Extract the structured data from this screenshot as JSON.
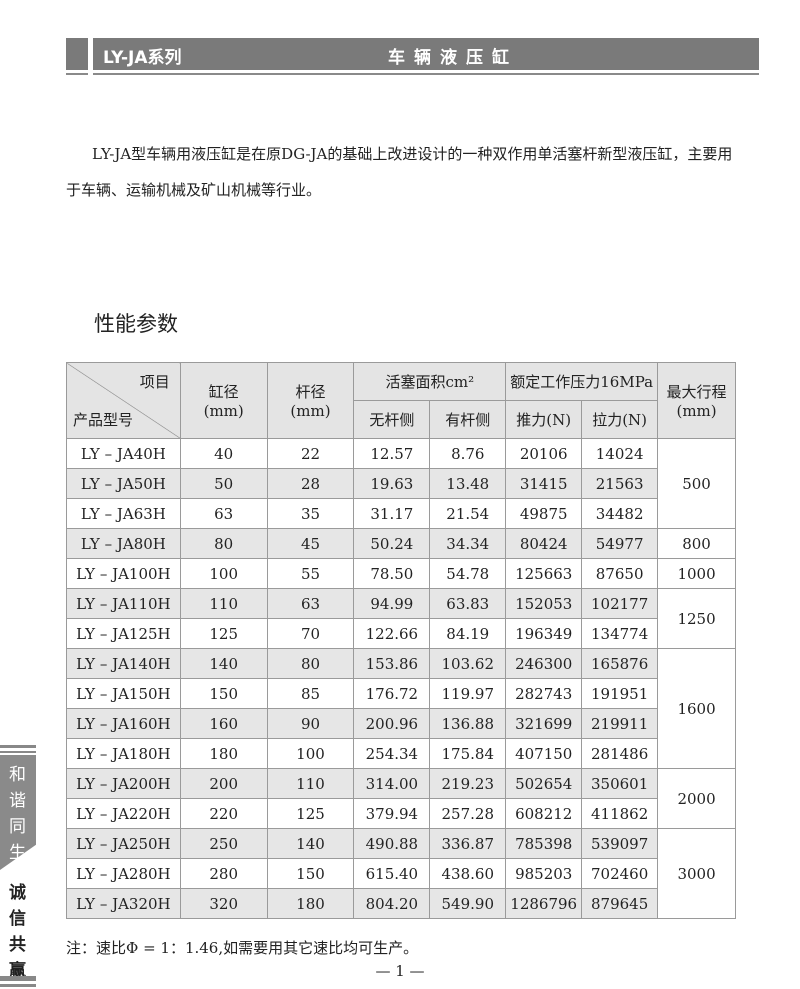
{
  "header": {
    "series": "LY-JA系列",
    "title": "车辆液压缸"
  },
  "intro": "LY-JA型车辆用液压缸是在原DG-JA的基础上改进设计的一种双作用单活塞杆新型液压缸，主要用于车辆、运输机械及矿山机械等行业。",
  "section_title": "性能参数",
  "table": {
    "head": {
      "item": "项目",
      "model": "产品型号",
      "bore": "缸径\n(mm)",
      "rod": "杆径\n(mm)",
      "area": "活塞面积cm²",
      "area_rodless": "无杆侧",
      "area_rod": "有杆侧",
      "pressure": "额定工作压力16MPa",
      "push": "推力(N)",
      "pull": "拉力(N)",
      "stroke": "最大行程\n(mm)"
    },
    "rows": [
      [
        "LY – JA40H",
        "40",
        "22",
        "12.57",
        "8.76",
        "20106",
        "14024"
      ],
      [
        "LY – JA50H",
        "50",
        "28",
        "19.63",
        "13.48",
        "31415",
        "21563"
      ],
      [
        "LY – JA63H",
        "63",
        "35",
        "31.17",
        "21.54",
        "49875",
        "34482"
      ],
      [
        "LY – JA80H",
        "80",
        "45",
        "50.24",
        "34.34",
        "80424",
        "54977"
      ],
      [
        "LY – JA100H",
        "100",
        "55",
        "78.50",
        "54.78",
        "125663",
        "87650"
      ],
      [
        "LY – JA110H",
        "110",
        "63",
        "94.99",
        "63.83",
        "152053",
        "102177"
      ],
      [
        "LY – JA125H",
        "125",
        "70",
        "122.66",
        "84.19",
        "196349",
        "134774"
      ],
      [
        "LY – JA140H",
        "140",
        "80",
        "153.86",
        "103.62",
        "246300",
        "165876"
      ],
      [
        "LY – JA150H",
        "150",
        "85",
        "176.72",
        "119.97",
        "282743",
        "191951"
      ],
      [
        "LY – JA160H",
        "160",
        "90",
        "200.96",
        "136.88",
        "321699",
        "219911"
      ],
      [
        "LY – JA180H",
        "180",
        "100",
        "254.34",
        "175.84",
        "407150",
        "281486"
      ],
      [
        "LY – JA200H",
        "200",
        "110",
        "314.00",
        "219.23",
        "502654",
        "350601"
      ],
      [
        "LY – JA220H",
        "220",
        "125",
        "379.94",
        "257.28",
        "608212",
        "411862"
      ],
      [
        "LY – JA250H",
        "250",
        "140",
        "490.88",
        "336.87",
        "785398",
        "539097"
      ],
      [
        "LY – JA280H",
        "280",
        "150",
        "615.40",
        "438.60",
        "985203",
        "702460"
      ],
      [
        "LY – JA320H",
        "320",
        "180",
        "804.20",
        "549.90",
        "1286796",
        "879645"
      ]
    ],
    "strokes": [
      {
        "value": "500",
        "rows": 3
      },
      {
        "value": "800",
        "rows": 1
      },
      {
        "value": "1000",
        "rows": 1
      },
      {
        "value": "1250",
        "rows": 2
      },
      {
        "value": "1600",
        "rows": 4
      },
      {
        "value": "2000",
        "rows": 2
      },
      {
        "value": "3000",
        "rows": 3
      }
    ]
  },
  "note": "注：速比Φ = 1：1.46,如需要用其它速比均可生产。",
  "page_number": "— 1 —",
  "side": {
    "slogan1": "和谐同生",
    "slogan2": "诚信共赢"
  }
}
